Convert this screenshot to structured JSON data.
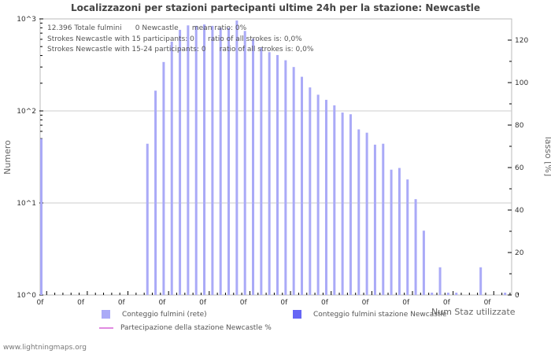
{
  "title": "Localizzazoni per stazioni partecipanti ultime 24h per la stazione: Newcastle",
  "stats": {
    "line1": "12.396 Totale fulmini      0 Newcastle      mean ratio: 0%",
    "line2": "Strokes Newcastle with 15 participants: 0      ratio of all strokes is: 0,0%",
    "line3": "Strokes Newcastle with 15-24 participants: 0      ratio of all strokes is: 0,0%"
  },
  "legend": {
    "network": "Conteggio fulmini (rete)",
    "station": "Conteggio fulmini stazione Newcastle",
    "participation": "Partecipazione della stazione Newcastle %"
  },
  "credit": "www.lightningmaps.org",
  "colors": {
    "network_bar": "#aaaaf7",
    "station_bar": "#6666f5",
    "participation_line": "#e08ae0",
    "grid": "#cccccc",
    "axis": "#bbbbbb"
  },
  "chart_data": {
    "type": "bar",
    "title": "Localizzazoni per stazioni partecipanti ultime 24h per la stazione: Newcastle",
    "xlabel": "Num Staz utilizzate",
    "ylabel": "Numero",
    "ylabel_right": "Tasso [%]",
    "yscale": "log",
    "ylim": [
      1,
      1000
    ],
    "ylim_right": [
      0,
      130
    ],
    "yticks_left": [
      "10^0",
      "10^1",
      "10^2",
      "10^3"
    ],
    "yticks_right": [
      "0",
      "20",
      "40",
      "60",
      "80",
      "100",
      "120"
    ],
    "xtick_label": "0f",
    "xtick_labels": [
      "0f",
      "0f",
      "0f",
      "0f",
      "0f",
      "0f",
      "0f",
      "0f",
      "0f",
      "0f",
      "0f",
      "0f"
    ],
    "num_categories": 58,
    "grid": true,
    "legend_position": "bottom",
    "series": [
      {
        "name": "Conteggio fulmini (rete)",
        "color": "#aaaaf7",
        "points": [
          {
            "x": 0,
            "y": 50
          },
          {
            "x": 13,
            "y": 44
          },
          {
            "x": 14,
            "y": 166
          },
          {
            "x": 15,
            "y": 340
          },
          {
            "x": 16,
            "y": 565
          },
          {
            "x": 17,
            "y": 760
          },
          {
            "x": 18,
            "y": 850
          },
          {
            "x": 19,
            "y": 840
          },
          {
            "x": 20,
            "y": 870
          },
          {
            "x": 21,
            "y": 840
          },
          {
            "x": 22,
            "y": 800
          },
          {
            "x": 23,
            "y": 800
          },
          {
            "x": 24,
            "y": 960
          },
          {
            "x": 25,
            "y": 740
          },
          {
            "x": 26,
            "y": 610
          },
          {
            "x": 27,
            "y": 490
          },
          {
            "x": 28,
            "y": 435
          },
          {
            "x": 29,
            "y": 405
          },
          {
            "x": 30,
            "y": 355
          },
          {
            "x": 31,
            "y": 300
          },
          {
            "x": 32,
            "y": 235
          },
          {
            "x": 33,
            "y": 180
          },
          {
            "x": 34,
            "y": 150
          },
          {
            "x": 35,
            "y": 132
          },
          {
            "x": 36,
            "y": 115
          },
          {
            "x": 37,
            "y": 96
          },
          {
            "x": 38,
            "y": 92
          },
          {
            "x": 39,
            "y": 63
          },
          {
            "x": 40,
            "y": 58
          },
          {
            "x": 41,
            "y": 43
          },
          {
            "x": 42,
            "y": 44
          },
          {
            "x": 43,
            "y": 23
          },
          {
            "x": 44,
            "y": 24
          },
          {
            "x": 45,
            "y": 18
          },
          {
            "x": 46,
            "y": 11
          },
          {
            "x": 47,
            "y": 5
          },
          {
            "x": 48,
            "y": 1
          },
          {
            "x": 49,
            "y": 2
          },
          {
            "x": 50,
            "y": 1
          },
          {
            "x": 51,
            "y": 1
          },
          {
            "x": 54,
            "y": 2
          },
          {
            "x": 57,
            "y": 1
          }
        ]
      },
      {
        "name": "Conteggio fulmini stazione Newcastle",
        "color": "#6666f5",
        "points": []
      },
      {
        "name": "Partecipazione della stazione Newcastle %",
        "color": "#e08ae0",
        "type": "line",
        "points": []
      }
    ]
  }
}
